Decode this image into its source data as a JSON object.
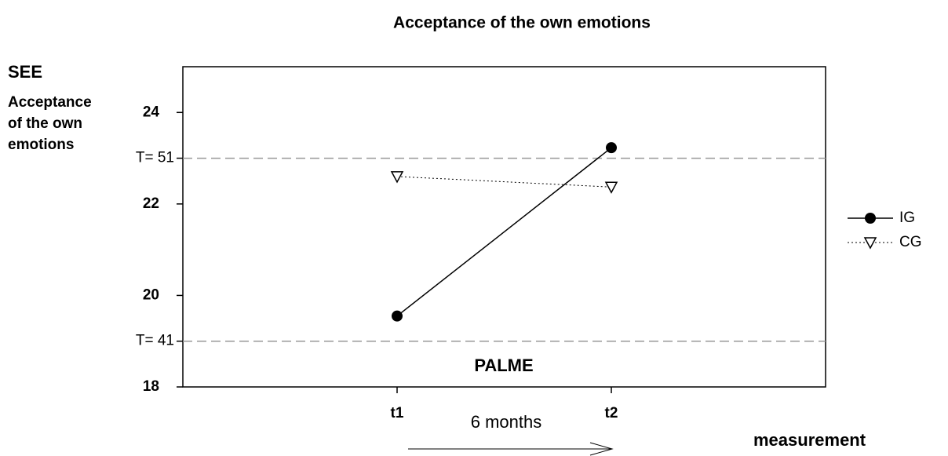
{
  "chart_data": {
    "type": "line",
    "title": "Acceptance of the own emotions",
    "y_title": "SEE",
    "y_label_lines": [
      "Acceptance",
      "of the own",
      "emotions"
    ],
    "x_label": "measurement",
    "categories": [
      "t1",
      "t2"
    ],
    "series": [
      {
        "name": "IG",
        "color": "#000000",
        "line_style": "solid",
        "marker": "circle",
        "values": [
          19.55,
          23.23
        ]
      },
      {
        "name": "CG",
        "color": "#000000",
        "line_style": "dotted",
        "marker": "triangle-down",
        "values": [
          22.6,
          22.37
        ]
      }
    ],
    "ylim": [
      18,
      25
    ],
    "yticks": [
      18,
      20,
      22,
      24
    ],
    "reference_lines": [
      {
        "value": 23,
        "label": "T= 51"
      },
      {
        "value": 19,
        "label": "T= 41"
      }
    ],
    "annotations": [
      "PALME",
      "6 months"
    ],
    "legend": "right",
    "grid": false
  }
}
